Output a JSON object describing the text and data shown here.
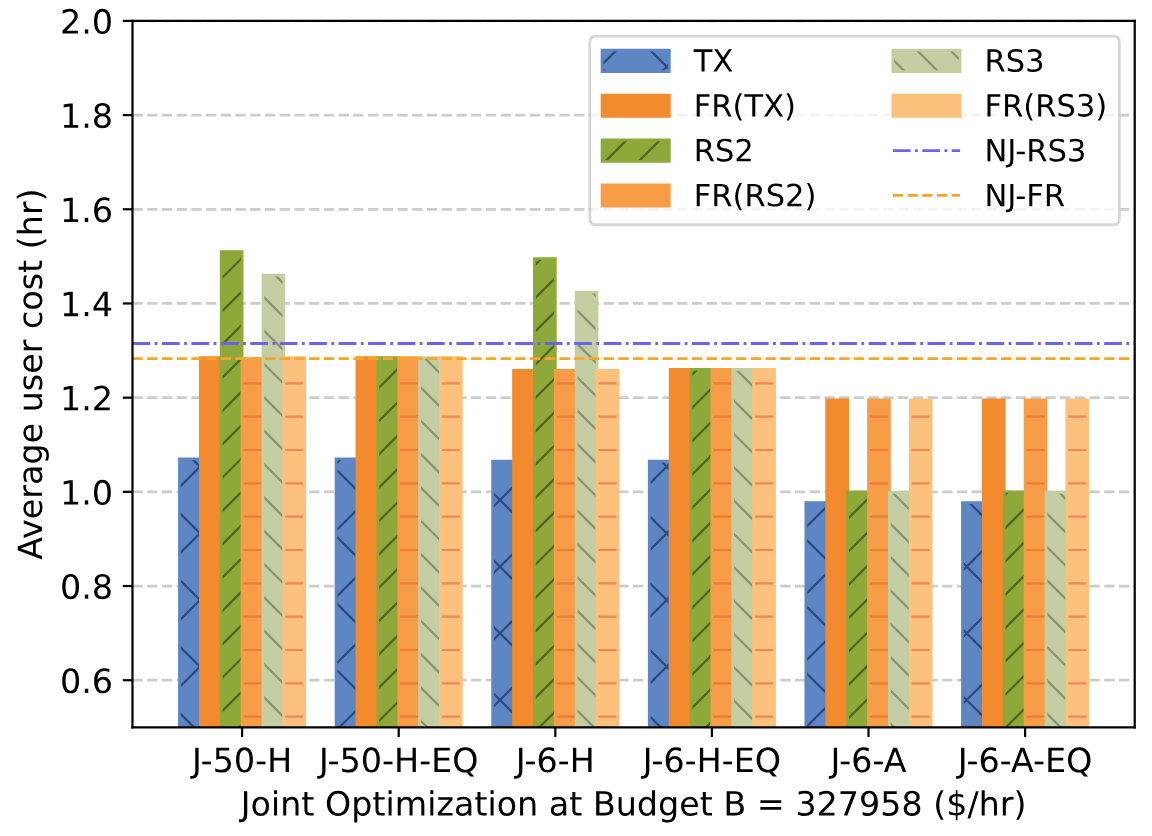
{
  "chart_data": {
    "type": "bar",
    "xlabel": "Joint Optimization at Budget B = 327958 ($/hr)",
    "ylabel": "Average user cost (hr)",
    "categories": [
      "J-50-H",
      "J-50-H-EQ",
      "J-6-H",
      "J-6-H-EQ",
      "J-6-A",
      "J-6-A-EQ"
    ],
    "series": [
      {
        "name": "TX",
        "color": "#5f86c4",
        "values": [
          1.07,
          1.07,
          1.065,
          1.065,
          0.977,
          0.977
        ]
      },
      {
        "name": "FR(TX)",
        "color": "#f28a2e",
        "values": [
          1.285,
          1.285,
          1.258,
          1.26,
          1.195,
          1.195
        ]
      },
      {
        "name": "RS2",
        "color": "#8fa83a",
        "values": [
          1.51,
          1.285,
          1.495,
          1.26,
          1.0,
          1.0
        ]
      },
      {
        "name": "FR(RS2)",
        "color": "#f79d48",
        "values": [
          1.283,
          1.285,
          1.258,
          1.26,
          1.195,
          1.195
        ]
      },
      {
        "name": "RS3",
        "color": "#c4cea2",
        "values": [
          1.46,
          1.285,
          1.424,
          1.26,
          0.999,
          0.999
        ]
      },
      {
        "name": "FR(RS3)",
        "color": "#fcc17c",
        "values": [
          1.285,
          1.285,
          1.258,
          1.26,
          1.195,
          1.195
        ]
      }
    ],
    "ref_lines": [
      {
        "axis": "y",
        "value": 1.315,
        "label": "NJ-RS3",
        "color": "#6666ee",
        "line_style": "dashdot"
      },
      {
        "axis": "y",
        "value": 1.283,
        "label": "NJ-FR",
        "color": "#f5a623",
        "line_style": "dashed"
      }
    ],
    "ylim": [
      0.5,
      2.0
    ],
    "yticks": [
      0.6,
      0.8,
      {
        "value": 1,
        "label": "1.0"
      },
      1.2,
      1.4,
      1.6,
      1.8,
      {
        "value": 2,
        "label": "2.0"
      }
    ],
    "grid": "y",
    "legend": "top right"
  }
}
